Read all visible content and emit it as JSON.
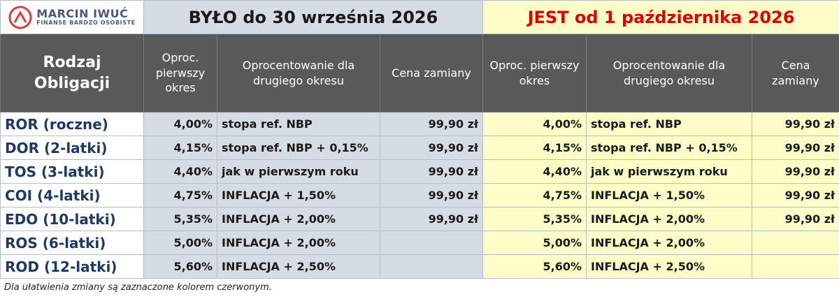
{
  "logo": {
    "name": "MARCIN IWUĆ",
    "tagline": "FINANSE BARDZO OSOBISTE"
  },
  "table": {
    "groups": [
      "BYŁO do 30 września 2026",
      "JEST od 1 października 2026"
    ],
    "header": [
      "Rodzaj Obligacji",
      "Oproc. pierwszy okres",
      "Oprocentowanie dla drugiego okresu",
      "Cena zamiany",
      "Oproc. pierwszy okres",
      "Oprocentowanie dla drugiego okresu",
      "Cena zamiany"
    ],
    "rows": [
      [
        "ROR (roczne)",
        "4,00%",
        "stopa ref. NBP",
        "99,90 zł",
        "4,00%",
        "stopa ref. NBP",
        "99,90 zł"
      ],
      [
        "DOR (2-latki)",
        "4,15%",
        "stopa ref. NBP + 0,15%",
        "99,90 zł",
        "4,15%",
        "stopa ref. NBP + 0,15%",
        "99,90 zł"
      ],
      [
        "TOS (3-latki)",
        "4,40%",
        "jak w pierwszym roku",
        "99,90 zł",
        "4,40%",
        "jak w pierwszym roku",
        "99,90 zł"
      ],
      [
        "COI (4-latki)",
        "4,75%",
        "INFLACJA + 1,50%",
        "99,90 zł",
        "4,75%",
        "INFLACJA + 1,50%",
        "99,90 zł"
      ],
      [
        "EDO (10-latki)",
        "5,35%",
        "INFLACJA + 2,00%",
        "99,90 zł",
        "5,35%",
        "INFLACJA + 2,00%",
        "99,90 zł"
      ],
      [
        "ROS (6-latki)",
        "5,00%",
        "INFLACJA + 2,00%",
        null,
        "5,00%",
        "INFLACJA + 2,00%",
        null
      ],
      [
        "ROD (12-latki)",
        "5,60%",
        "INFLACJA + 2,50%",
        null,
        "5,60%",
        "INFLACJA + 2,50%",
        null
      ]
    ]
  },
  "footnote": "Dla ułatwienia zmiany są zaznaczone kolorem czerwonym."
}
